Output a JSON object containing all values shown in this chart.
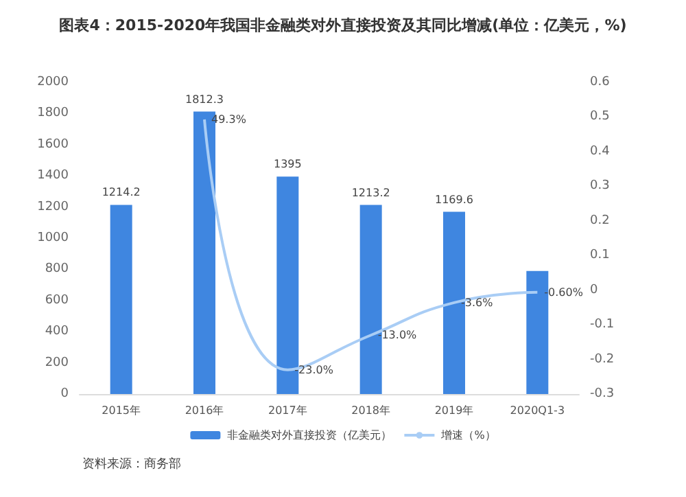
{
  "chart_data": {
    "type": "bar",
    "title": "图表4：2015-2020年我国非金融类对外直接投资及其同比增减(单位：亿美元，%)",
    "categories": [
      "2015年",
      "2016年",
      "2017年",
      "2018年",
      "2019年",
      "2020Q1-3"
    ],
    "series": [
      {
        "name": "非金融类对外直接投资（亿美元）",
        "color": "#3f86e0",
        "values": [
          1214.2,
          1812.3,
          1395,
          1213.2,
          1169.6,
          790
        ],
        "value_labels": [
          "1214.2",
          "1812.3",
          "1395",
          "1213.2",
          "1169.6",
          null
        ]
      },
      {
        "name": "增速（%）",
        "type": "line",
        "axis": "y2",
        "color": "#a9cdf5",
        "values": [
          null,
          0.493,
          -0.23,
          -0.13,
          -0.036,
          -0.006
        ],
        "value_labels": [
          null,
          "49.3%",
          "-23.0%",
          "-13.0%",
          "-3.6%",
          "-0.60%"
        ]
      }
    ],
    "ylim": [
      0,
      2000
    ],
    "yticks": [
      0,
      200,
      400,
      600,
      800,
      1000,
      1200,
      1400,
      1600,
      1800,
      2000
    ],
    "y2lim": [
      -0.3,
      0.6
    ],
    "y2ticks": [
      -0.3,
      -0.2,
      -0.1,
      0,
      0.1,
      0.2,
      0.3,
      0.4,
      0.5,
      0.6
    ],
    "grid": false,
    "legend": "bottom",
    "marker": "none",
    "annotations": [
      "资料来源：商务部"
    ]
  }
}
